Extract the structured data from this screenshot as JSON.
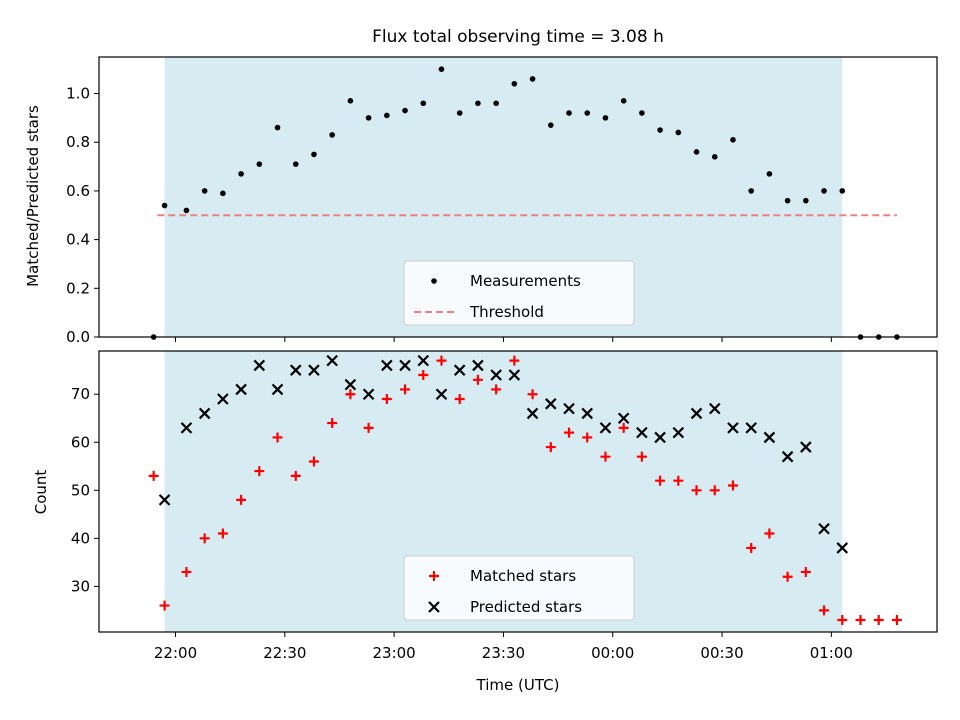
{
  "chart_data": [
    {
      "type": "scatter",
      "title": "Flux total observing time = 3.08 h",
      "xlabel": "",
      "ylabel": "Matched/Predicted stars",
      "ylim": [
        0,
        1.15
      ],
      "yticks": [
        "0.0",
        "0.2",
        "0.4",
        "0.6",
        "0.8",
        "1.0"
      ],
      "xlim": [
        "21:39",
        "01:29"
      ],
      "grid": false,
      "legend_position": "bottom-center",
      "observing_window": {
        "start": "21:57",
        "end": "01:03",
        "color": "#add8e6"
      },
      "threshold": {
        "name": "Threshold",
        "value": 0.5,
        "x_range": [
          "21:55",
          "01:18"
        ],
        "color": "#f08080"
      },
      "series": [
        {
          "name": "Measurements",
          "color": "#000000",
          "x": [
            "21:54",
            "21:57",
            "22:03",
            "22:08",
            "22:13",
            "22:18",
            "22:23",
            "22:28",
            "22:33",
            "22:38",
            "22:43",
            "22:48",
            "22:53",
            "22:58",
            "23:03",
            "23:08",
            "23:13",
            "23:18",
            "23:23",
            "23:28",
            "23:33",
            "23:38",
            "23:43",
            "23:48",
            "23:53",
            "23:58",
            "00:03",
            "00:08",
            "00:13",
            "00:18",
            "00:23",
            "00:28",
            "00:33",
            "00:38",
            "00:43",
            "00:48",
            "00:53",
            "00:58",
            "01:03",
            "01:08",
            "01:13",
            "01:18"
          ],
          "y": [
            0.0,
            0.54,
            0.52,
            0.6,
            0.59,
            0.67,
            0.71,
            0.86,
            0.71,
            0.75,
            0.83,
            0.97,
            0.9,
            0.91,
            0.93,
            0.96,
            1.1,
            0.92,
            0.96,
            0.96,
            1.04,
            1.06,
            0.87,
            0.92,
            0.92,
            0.9,
            0.97,
            0.92,
            0.85,
            0.84,
            0.76,
            0.74,
            0.81,
            0.6,
            0.67,
            0.56,
            0.56,
            0.6,
            0.6,
            0.0,
            0.0,
            0.0
          ]
        }
      ]
    },
    {
      "type": "scatter",
      "title": "",
      "xlabel": "Time (UTC)",
      "ylabel": "Count",
      "ylim": [
        20.5,
        79
      ],
      "yticks": [
        "30",
        "40",
        "50",
        "60",
        "70"
      ],
      "xlim": [
        "21:39",
        "01:29"
      ],
      "xticks": [
        "22:00",
        "22:30",
        "23:00",
        "23:30",
        "00:00",
        "00:30",
        "01:00"
      ],
      "grid": false,
      "legend_position": "bottom-center",
      "observing_window": {
        "start": "21:57",
        "end": "01:03",
        "color": "#add8e6"
      },
      "series": [
        {
          "name": "Matched stars",
          "color": "#ff0000",
          "marker": "+",
          "x": [
            "21:54",
            "21:57",
            "22:03",
            "22:08",
            "22:13",
            "22:18",
            "22:23",
            "22:28",
            "22:33",
            "22:38",
            "22:43",
            "22:48",
            "22:53",
            "22:58",
            "23:03",
            "23:08",
            "23:13",
            "23:18",
            "23:23",
            "23:28",
            "23:33",
            "23:38",
            "23:43",
            "23:48",
            "23:53",
            "23:58",
            "00:03",
            "00:08",
            "00:13",
            "00:18",
            "00:23",
            "00:28",
            "00:33",
            "00:38",
            "00:43",
            "00:48",
            "00:53",
            "00:58",
            "01:03",
            "01:08",
            "01:13",
            "01:18"
          ],
          "y": [
            53,
            26,
            33,
            40,
            41,
            48,
            54,
            61,
            53,
            56,
            64,
            70,
            63,
            69,
            71,
            74,
            77,
            69,
            73,
            71,
            77,
            70,
            59,
            62,
            61,
            57,
            63,
            57,
            52,
            52,
            50,
            50,
            51,
            38,
            41,
            32,
            33,
            25,
            23,
            23,
            23,
            23
          ]
        },
        {
          "name": "Predicted stars",
          "color": "#000000",
          "marker": "x",
          "x": [
            "21:57",
            "22:03",
            "22:08",
            "22:13",
            "22:18",
            "22:23",
            "22:28",
            "22:33",
            "22:38",
            "22:43",
            "22:48",
            "22:53",
            "22:58",
            "23:03",
            "23:08",
            "23:13",
            "23:18",
            "23:23",
            "23:28",
            "23:33",
            "23:38",
            "23:43",
            "23:48",
            "23:53",
            "23:58",
            "00:03",
            "00:08",
            "00:13",
            "00:18",
            "00:23",
            "00:28",
            "00:33",
            "00:38",
            "00:43",
            "00:48",
            "00:53",
            "00:58",
            "01:03"
          ],
          "y": [
            48,
            63,
            66,
            69,
            71,
            76,
            71,
            75,
            75,
            77,
            72,
            70,
            76,
            76,
            77,
            70,
            75,
            76,
            74,
            74,
            66,
            68,
            67,
            66,
            63,
            65,
            62,
            61,
            62,
            66,
            67,
            63,
            63,
            61,
            57,
            59,
            42,
            38
          ]
        }
      ]
    }
  ]
}
